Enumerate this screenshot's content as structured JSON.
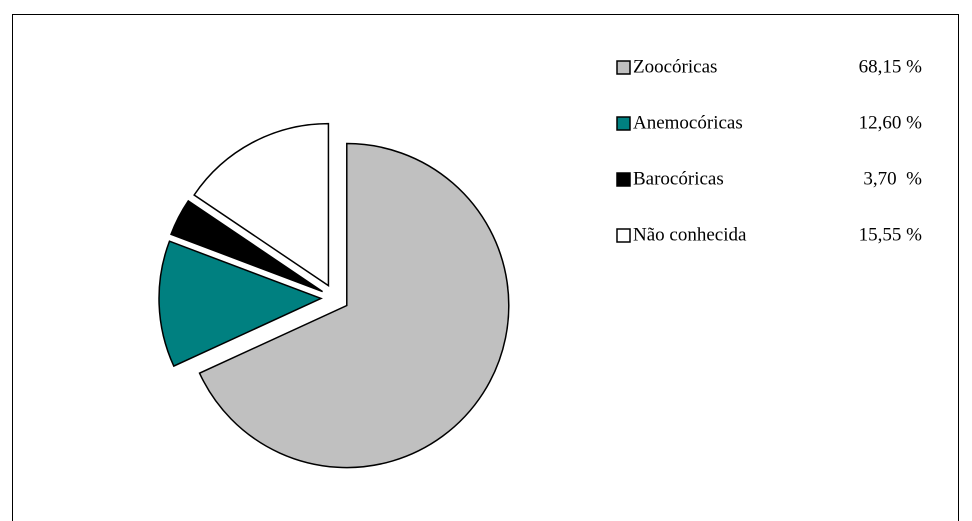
{
  "chart_data": {
    "type": "pie",
    "categories": [
      "Zoocóricas",
      "Anemocóricas",
      "Barocóricas",
      "Não conhecida"
    ],
    "values": [
      68.15,
      12.6,
      3.7,
      15.55
    ],
    "value_labels": [
      "68,15 %",
      "12,60 %",
      "3,70  %",
      "15,55 %"
    ],
    "colors": [
      "#c0c0c0",
      "#008080",
      "#000000",
      "#ffffff"
    ],
    "exploded": true,
    "legend": "right"
  }
}
